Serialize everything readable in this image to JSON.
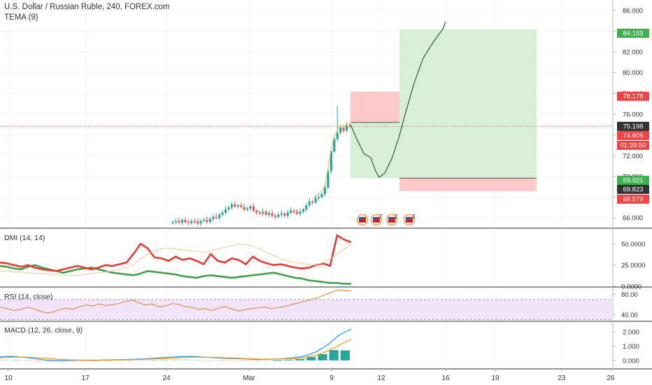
{
  "header": {
    "title": "U.S. Dollar / Russian Ruble, 240, FOREX.com",
    "indicator": "TEMA (9)"
  },
  "panes": {
    "dmi_label": "DMI (14, 14)",
    "rsi_label": "RSI (14, close)",
    "macd_label": "MACD (12, 26, close, 9)"
  },
  "colors": {
    "up": "#26a69a",
    "down": "#ef5350",
    "green_zone": "#d7efd7",
    "red_zone": "#ffc9c9",
    "green_tag": "#3fb14f",
    "red_tag": "#f04444",
    "dark_tag": "#333333",
    "dmi_plus": "#43a047",
    "dmi_minus": "#e53935",
    "adx": "#f5c79a",
    "rsi": "#e67e22",
    "rsi_band": "#f1e4fb",
    "macd": "#2196f3",
    "signal": "#ff9800",
    "projection": "#2e5e2e"
  },
  "chart_data": [
    {
      "type": "candlestick",
      "title": "U.S. Dollar / Russian Ruble, 240, FOREX.com",
      "y_ticks": [
        "66.000",
        "68.000",
        "70.000",
        "72.000",
        "74.000",
        "76.000",
        "78.000",
        "80.000",
        "82.000",
        "84.000",
        "86.000"
      ],
      "y_range": [
        65,
        87
      ],
      "price_tags": [
        {
          "label": "84.159",
          "value": 84.159,
          "color": "green"
        },
        {
          "label": "78.178",
          "value": 78.178,
          "color": "red"
        },
        {
          "label": "75.198",
          "value": 75.198,
          "color": "dark"
        },
        {
          "label": "74.809",
          "value": 74.809,
          "color": "red"
        },
        {
          "label": "01:39:50",
          "value": 73.9,
          "color": "red"
        },
        {
          "label": "69.921",
          "value": 69.921,
          "color": "green"
        },
        {
          "label": "69.823",
          "value": 69.823,
          "color": "dark"
        },
        {
          "label": "68.579",
          "value": 68.579,
          "color": "red"
        }
      ],
      "last_price": 74.809,
      "position": {
        "entry": 75.198,
        "target": 84.159,
        "stop": 78.178,
        "alt_entry": 69.823,
        "alt_stop": 68.579
      },
      "closes": [
        65.6,
        65.7,
        65.55,
        65.8,
        65.6,
        65.5,
        65.7,
        65.6,
        65.45,
        65.7,
        65.8,
        65.6,
        65.9,
        66.1,
        66.0,
        66.3,
        66.5,
        66.8,
        67.0,
        67.3,
        67.1,
        67.2,
        67.05,
        66.8,
        66.9,
        67.1,
        66.7,
        66.5,
        66.4,
        66.6,
        66.3,
        66.45,
        66.2,
        66.1,
        66.3,
        66.4,
        66.2,
        66.5,
        66.7,
        66.6,
        66.4,
        66.6,
        66.8,
        67.2,
        67.6,
        67.5,
        67.9,
        68.0,
        68.3,
        68.9,
        70.5,
        72.4,
        73.6,
        74.2,
        74.7,
        74.4,
        74.9,
        74.81
      ],
      "annotations": [
        "",
        "7",
        "2",
        "3"
      ]
    },
    {
      "type": "line",
      "name": "DMI (14, 14)",
      "y_ticks": [
        "50.0000",
        "25.0000",
        "0.0000"
      ],
      "y_range": [
        0,
        66
      ],
      "series": [
        {
          "name": "+DI",
          "values": [
            24,
            23,
            21,
            20,
            23,
            25,
            22,
            20,
            18,
            16,
            18,
            20,
            21,
            22,
            20,
            18,
            16,
            15,
            14,
            13,
            15,
            18,
            17,
            16,
            15,
            14,
            12,
            11,
            10,
            12,
            13,
            12,
            11,
            10,
            11,
            12,
            13,
            14,
            15,
            16,
            14,
            12,
            10,
            9,
            7,
            6,
            5,
            4,
            4,
            3,
            3
          ]
        },
        {
          "name": "-DI",
          "values": [
            28,
            27,
            25,
            23,
            25,
            22,
            20,
            19,
            18,
            20,
            22,
            24,
            22,
            20,
            22,
            25,
            24,
            26,
            28,
            38,
            50,
            45,
            34,
            33,
            30,
            35,
            31,
            33,
            30,
            26,
            38,
            30,
            28,
            33,
            31,
            26,
            35,
            30,
            27,
            25,
            26,
            24,
            22,
            21,
            22,
            25,
            27,
            24,
            60,
            55,
            52
          ]
        },
        {
          "name": "ADX",
          "values": [
            18,
            18,
            17,
            17,
            16,
            15,
            15,
            14,
            14,
            13,
            13,
            13,
            14,
            15,
            16,
            17,
            18,
            20,
            22,
            26,
            32,
            38,
            42,
            44,
            45,
            44,
            43,
            42,
            41,
            40,
            42,
            44,
            46,
            48,
            50,
            49,
            47,
            44,
            40,
            36,
            32,
            30,
            28,
            27,
            26,
            25,
            28,
            32,
            38,
            44,
            50
          ]
        }
      ]
    },
    {
      "type": "line",
      "name": "RSI (14, close)",
      "y_ticks": [
        "80.00",
        "40.00"
      ],
      "y_range": [
        28,
        92
      ],
      "band": [
        30,
        70
      ],
      "values": [
        55,
        52,
        48,
        50,
        54,
        52,
        47,
        43,
        45,
        50,
        53,
        50,
        56,
        59,
        57,
        61,
        58,
        60,
        62,
        66,
        69,
        63,
        59,
        61,
        55,
        57,
        62,
        60,
        56,
        54,
        50,
        52,
        48,
        53,
        56,
        51,
        47,
        50,
        52,
        54,
        55,
        52,
        54,
        56,
        60,
        63,
        66,
        70,
        74,
        79,
        84,
        89,
        88,
        87
      ]
    },
    {
      "type": "line",
      "name": "MACD (12, 26, close, 9)",
      "y_ticks": [
        "2.000",
        "1.000",
        "0.000"
      ],
      "y_range": [
        -0.45,
        2.6
      ],
      "series": [
        {
          "name": "MACD",
          "values": [
            0.25,
            0.28,
            0.22,
            0.12,
            0.02,
            -0.02,
            0.0,
            0.02,
            0.0,
            0.03,
            0.05,
            0.07,
            0.1,
            0.14,
            0.2,
            0.25,
            0.28,
            0.26,
            0.2,
            0.15,
            0.12,
            0.1,
            0.06,
            0.08,
            0.12,
            0.18,
            0.3,
            0.6,
            1.1,
            1.8,
            2.2
          ]
        },
        {
          "name": "Signal",
          "values": [
            0.18,
            0.22,
            0.24,
            0.2,
            0.14,
            0.08,
            0.04,
            0.02,
            0.02,
            0.02,
            0.03,
            0.05,
            0.07,
            0.1,
            0.13,
            0.17,
            0.21,
            0.23,
            0.22,
            0.19,
            0.16,
            0.13,
            0.1,
            0.09,
            0.1,
            0.13,
            0.2,
            0.36,
            0.66,
            1.08,
            1.5
          ]
        }
      ],
      "histogram": [
        0.05,
        0.04,
        -0.02,
        -0.08,
        -0.1,
        -0.08,
        -0.04,
        0.0,
        0.0,
        0.01,
        0.02,
        0.02,
        0.03,
        0.04,
        0.07,
        0.08,
        0.07,
        0.03,
        -0.02,
        -0.04,
        -0.04,
        -0.03,
        -0.04,
        -0.01,
        0.02,
        0.05,
        0.1,
        0.24,
        0.44,
        0.72,
        0.7
      ]
    }
  ],
  "x_axis": [
    "10",
    "17",
    "24",
    "Mar",
    "9",
    "12",
    "16",
    "19",
    "23",
    "26"
  ]
}
